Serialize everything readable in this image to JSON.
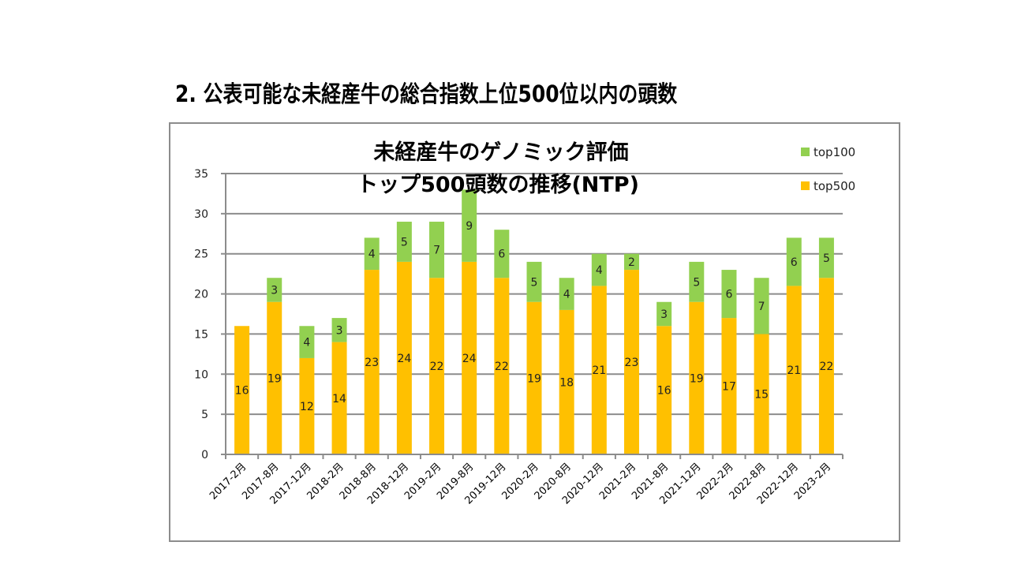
{
  "slide": {
    "title": "2. 公表可能な未経産牛の総合指数上位500位以内の頭数"
  },
  "colors": {
    "top500": "#FFC000",
    "top100": "#92D050",
    "grid": "#8c8c8c",
    "frame": "#8c8c8c"
  },
  "chart_data": {
    "type": "bar",
    "stacked": true,
    "title_lines": [
      "未経産牛のゲノミック評価",
      "トップ500頭数の推移(NTP)"
    ],
    "xlabel": "",
    "ylabel": "",
    "ylim": [
      0,
      35
    ],
    "yticks": [
      0,
      5,
      10,
      15,
      20,
      25,
      30,
      35
    ],
    "grid": true,
    "legend_position": "top-right",
    "categories": [
      "2017-2月",
      "2017-8月",
      "2017-12月",
      "2018-2月",
      "2018-8月",
      "2018-12月",
      "2019-2月",
      "2019-8月",
      "2019-12月",
      "2020-2月",
      "2020-8月",
      "2020-12月",
      "2021-2月",
      "2021-8月",
      "2021-12月",
      "2022-2月",
      "2022-8月",
      "2022-12月",
      "2023-2月"
    ],
    "series": [
      {
        "name": "top500",
        "values": [
          16,
          19,
          12,
          14,
          23,
          24,
          22,
          24,
          22,
          19,
          18,
          21,
          23,
          16,
          19,
          17,
          15,
          21,
          22
        ]
      },
      {
        "name": "top100",
        "values": [
          0,
          3,
          4,
          3,
          4,
          5,
          7,
          9,
          6,
          5,
          4,
          4,
          2,
          3,
          5,
          6,
          7,
          6,
          5
        ]
      }
    ],
    "legend": [
      "top100",
      "top500"
    ]
  }
}
